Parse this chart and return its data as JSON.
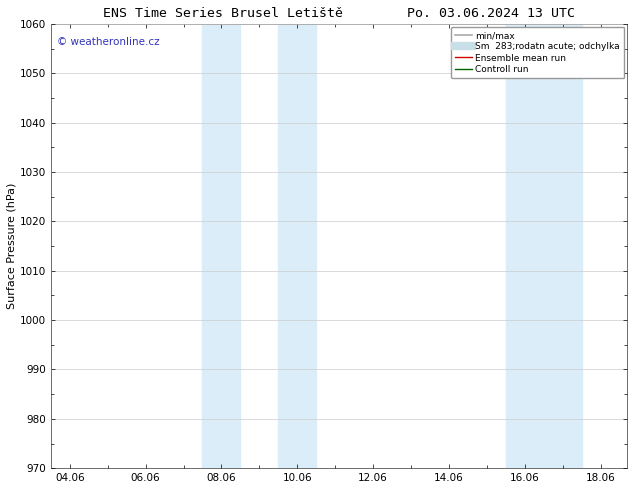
{
  "title": "ENS Time Series Brusel Letiště        Po. 03.06.2024 13 UTC",
  "ylabel": "Surface Pressure (hPa)",
  "ylim": [
    970,
    1060
  ],
  "yticks": [
    970,
    980,
    990,
    1000,
    1010,
    1020,
    1030,
    1040,
    1050,
    1060
  ],
  "xtick_labels": [
    "04.06",
    "06.06",
    "08.06",
    "10.06",
    "12.06",
    "14.06",
    "16.06",
    "18.06"
  ],
  "xtick_positions": [
    0,
    2,
    4,
    6,
    8,
    10,
    12,
    14
  ],
  "xmin": -0.5,
  "xmax": 14.7,
  "shade_regions": [
    {
      "xmin": 3.5,
      "xmax": 4.5,
      "color": "#dbedf8"
    },
    {
      "xmin": 5.5,
      "xmax": 6.5,
      "color": "#dbedf8"
    },
    {
      "xmin": 11.5,
      "xmax": 12.5,
      "color": "#dbedf8"
    },
    {
      "xmin": 12.5,
      "xmax": 13.5,
      "color": "#dbedf8"
    }
  ],
  "watermark": "© weatheronline.cz",
  "watermark_color": "#3333bb",
  "legend_entries": [
    {
      "label": "min/max",
      "color": "#aaaaaa",
      "linestyle": "-",
      "linewidth": 1.2
    },
    {
      "label": "Sm  283;rodatn acute; odchylka",
      "color": "#c8dfe8",
      "linestyle": "-",
      "linewidth": 6
    },
    {
      "label": "Ensemble mean run",
      "color": "#cc0000",
      "linestyle": "-",
      "linewidth": 1.0
    },
    {
      "label": "Controll run",
      "color": "#006600",
      "linestyle": "-",
      "linewidth": 1.0
    }
  ],
  "grid_color": "#cccccc",
  "bg_color": "#ffffff",
  "title_fontsize": 9.5,
  "axis_label_fontsize": 8,
  "tick_fontsize": 7.5,
  "watermark_fontsize": 7.5,
  "legend_fontsize": 6.5
}
